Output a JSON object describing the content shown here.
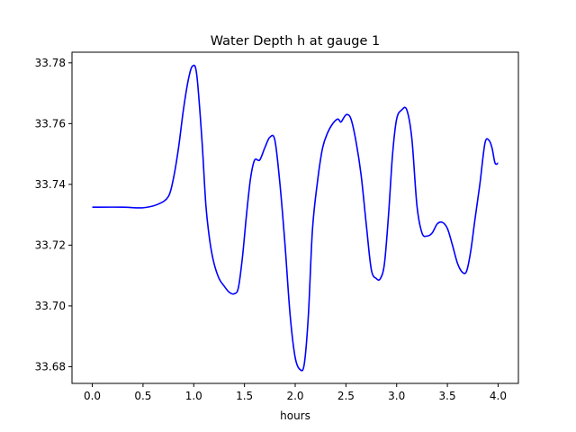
{
  "chart_data": {
    "type": "line",
    "title": "Water Depth h at gauge 1",
    "xlabel": "hours",
    "ylabel": "",
    "xlim": [
      -0.2,
      4.2
    ],
    "ylim": [
      33.6745,
      33.7835
    ],
    "xticks": [
      0.0,
      0.5,
      1.0,
      1.5,
      2.0,
      2.5,
      3.0,
      3.5,
      4.0
    ],
    "xtick_labels": [
      "0.0",
      "0.5",
      "1.0",
      "1.5",
      "2.0",
      "2.5",
      "3.0",
      "3.5",
      "4.0"
    ],
    "yticks": [
      33.68,
      33.7,
      33.72,
      33.74,
      33.76,
      33.78
    ],
    "ytick_labels": [
      "33.68",
      "33.70",
      "33.72",
      "33.74",
      "33.76",
      "33.78"
    ],
    "grid": false,
    "legend": "none",
    "series": [
      {
        "color": "#0000ff",
        "x": [
          0.0,
          0.3,
          0.5,
          0.65,
          0.75,
          0.8,
          0.85,
          0.9,
          0.95,
          0.99,
          1.03,
          1.08,
          1.12,
          1.16,
          1.2,
          1.25,
          1.3,
          1.35,
          1.4,
          1.44,
          1.48,
          1.52,
          1.56,
          1.6,
          1.65,
          1.7,
          1.75,
          1.8,
          1.85,
          1.9,
          1.95,
          2.0,
          2.05,
          2.09,
          2.13,
          2.17,
          2.22,
          2.27,
          2.32,
          2.37,
          2.42,
          2.45,
          2.48,
          2.51,
          2.55,
          2.6,
          2.65,
          2.7,
          2.75,
          2.8,
          2.84,
          2.88,
          2.92,
          2.96,
          3.0,
          3.05,
          3.1,
          3.15,
          3.2,
          3.25,
          3.3,
          3.35,
          3.4,
          3.45,
          3.5,
          3.55,
          3.6,
          3.65,
          3.69,
          3.73,
          3.77,
          3.82,
          3.87,
          3.91,
          3.94,
          3.97,
          4.0
        ],
        "y": [
          33.7325,
          33.7325,
          33.7323,
          33.7335,
          33.736,
          33.742,
          33.752,
          33.765,
          33.775,
          33.779,
          33.776,
          33.755,
          33.733,
          33.721,
          33.714,
          33.709,
          33.7065,
          33.7045,
          33.704,
          33.706,
          33.716,
          33.73,
          33.742,
          33.748,
          33.748,
          33.752,
          33.7555,
          33.7545,
          33.74,
          33.72,
          33.697,
          33.683,
          33.679,
          33.681,
          33.697,
          33.725,
          33.741,
          33.752,
          33.757,
          33.76,
          33.7615,
          33.7605,
          33.762,
          33.763,
          33.7615,
          33.754,
          33.743,
          33.727,
          33.712,
          33.709,
          33.709,
          33.714,
          33.73,
          33.75,
          33.7615,
          33.7645,
          33.7645,
          33.755,
          33.733,
          33.724,
          33.723,
          33.724,
          33.727,
          33.7275,
          33.7255,
          33.72,
          33.714,
          33.711,
          33.7115,
          33.718,
          33.728,
          33.74,
          33.7535,
          33.7545,
          33.752,
          33.747,
          33.747
        ]
      }
    ]
  }
}
